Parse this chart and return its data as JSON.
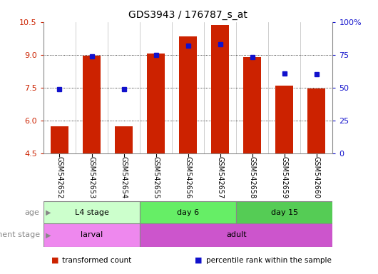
{
  "title": "GDS3943 / 176787_s_at",
  "samples": [
    "GSM542652",
    "GSM542653",
    "GSM542654",
    "GSM542655",
    "GSM542656",
    "GSM542657",
    "GSM542658",
    "GSM542659",
    "GSM542660"
  ],
  "transformed_count": [
    5.75,
    8.95,
    5.75,
    9.05,
    9.85,
    10.35,
    8.9,
    7.6,
    7.45
  ],
  "percentile_rank": [
    49,
    74,
    49,
    75,
    82,
    83,
    73,
    61,
    60
  ],
  "ylim": [
    4.5,
    10.5
  ],
  "yticks": [
    4.5,
    6.0,
    7.5,
    9.0,
    10.5
  ],
  "right_yticks": [
    0,
    25,
    50,
    75,
    100
  ],
  "right_ylim": [
    0,
    100
  ],
  "bar_color": "#cc2200",
  "dot_color": "#1111cc",
  "bar_bottom": 4.5,
  "age_groups": [
    {
      "label": "L4 stage",
      "start": 0,
      "end": 3,
      "color": "#ccffcc"
    },
    {
      "label": "day 6",
      "start": 3,
      "end": 6,
      "color": "#66ee66"
    },
    {
      "label": "day 15",
      "start": 6,
      "end": 9,
      "color": "#55cc55"
    }
  ],
  "dev_groups": [
    {
      "label": "larval",
      "start": 0,
      "end": 3,
      "color": "#ee88ee"
    },
    {
      "label": "adult",
      "start": 3,
      "end": 9,
      "color": "#cc55cc"
    }
  ],
  "legend_items": [
    {
      "color": "#cc2200",
      "label": "transformed count"
    },
    {
      "color": "#1111cc",
      "label": "percentile rank within the sample"
    }
  ],
  "label_color": "#888888",
  "gray_bg": "#d8d8d8"
}
